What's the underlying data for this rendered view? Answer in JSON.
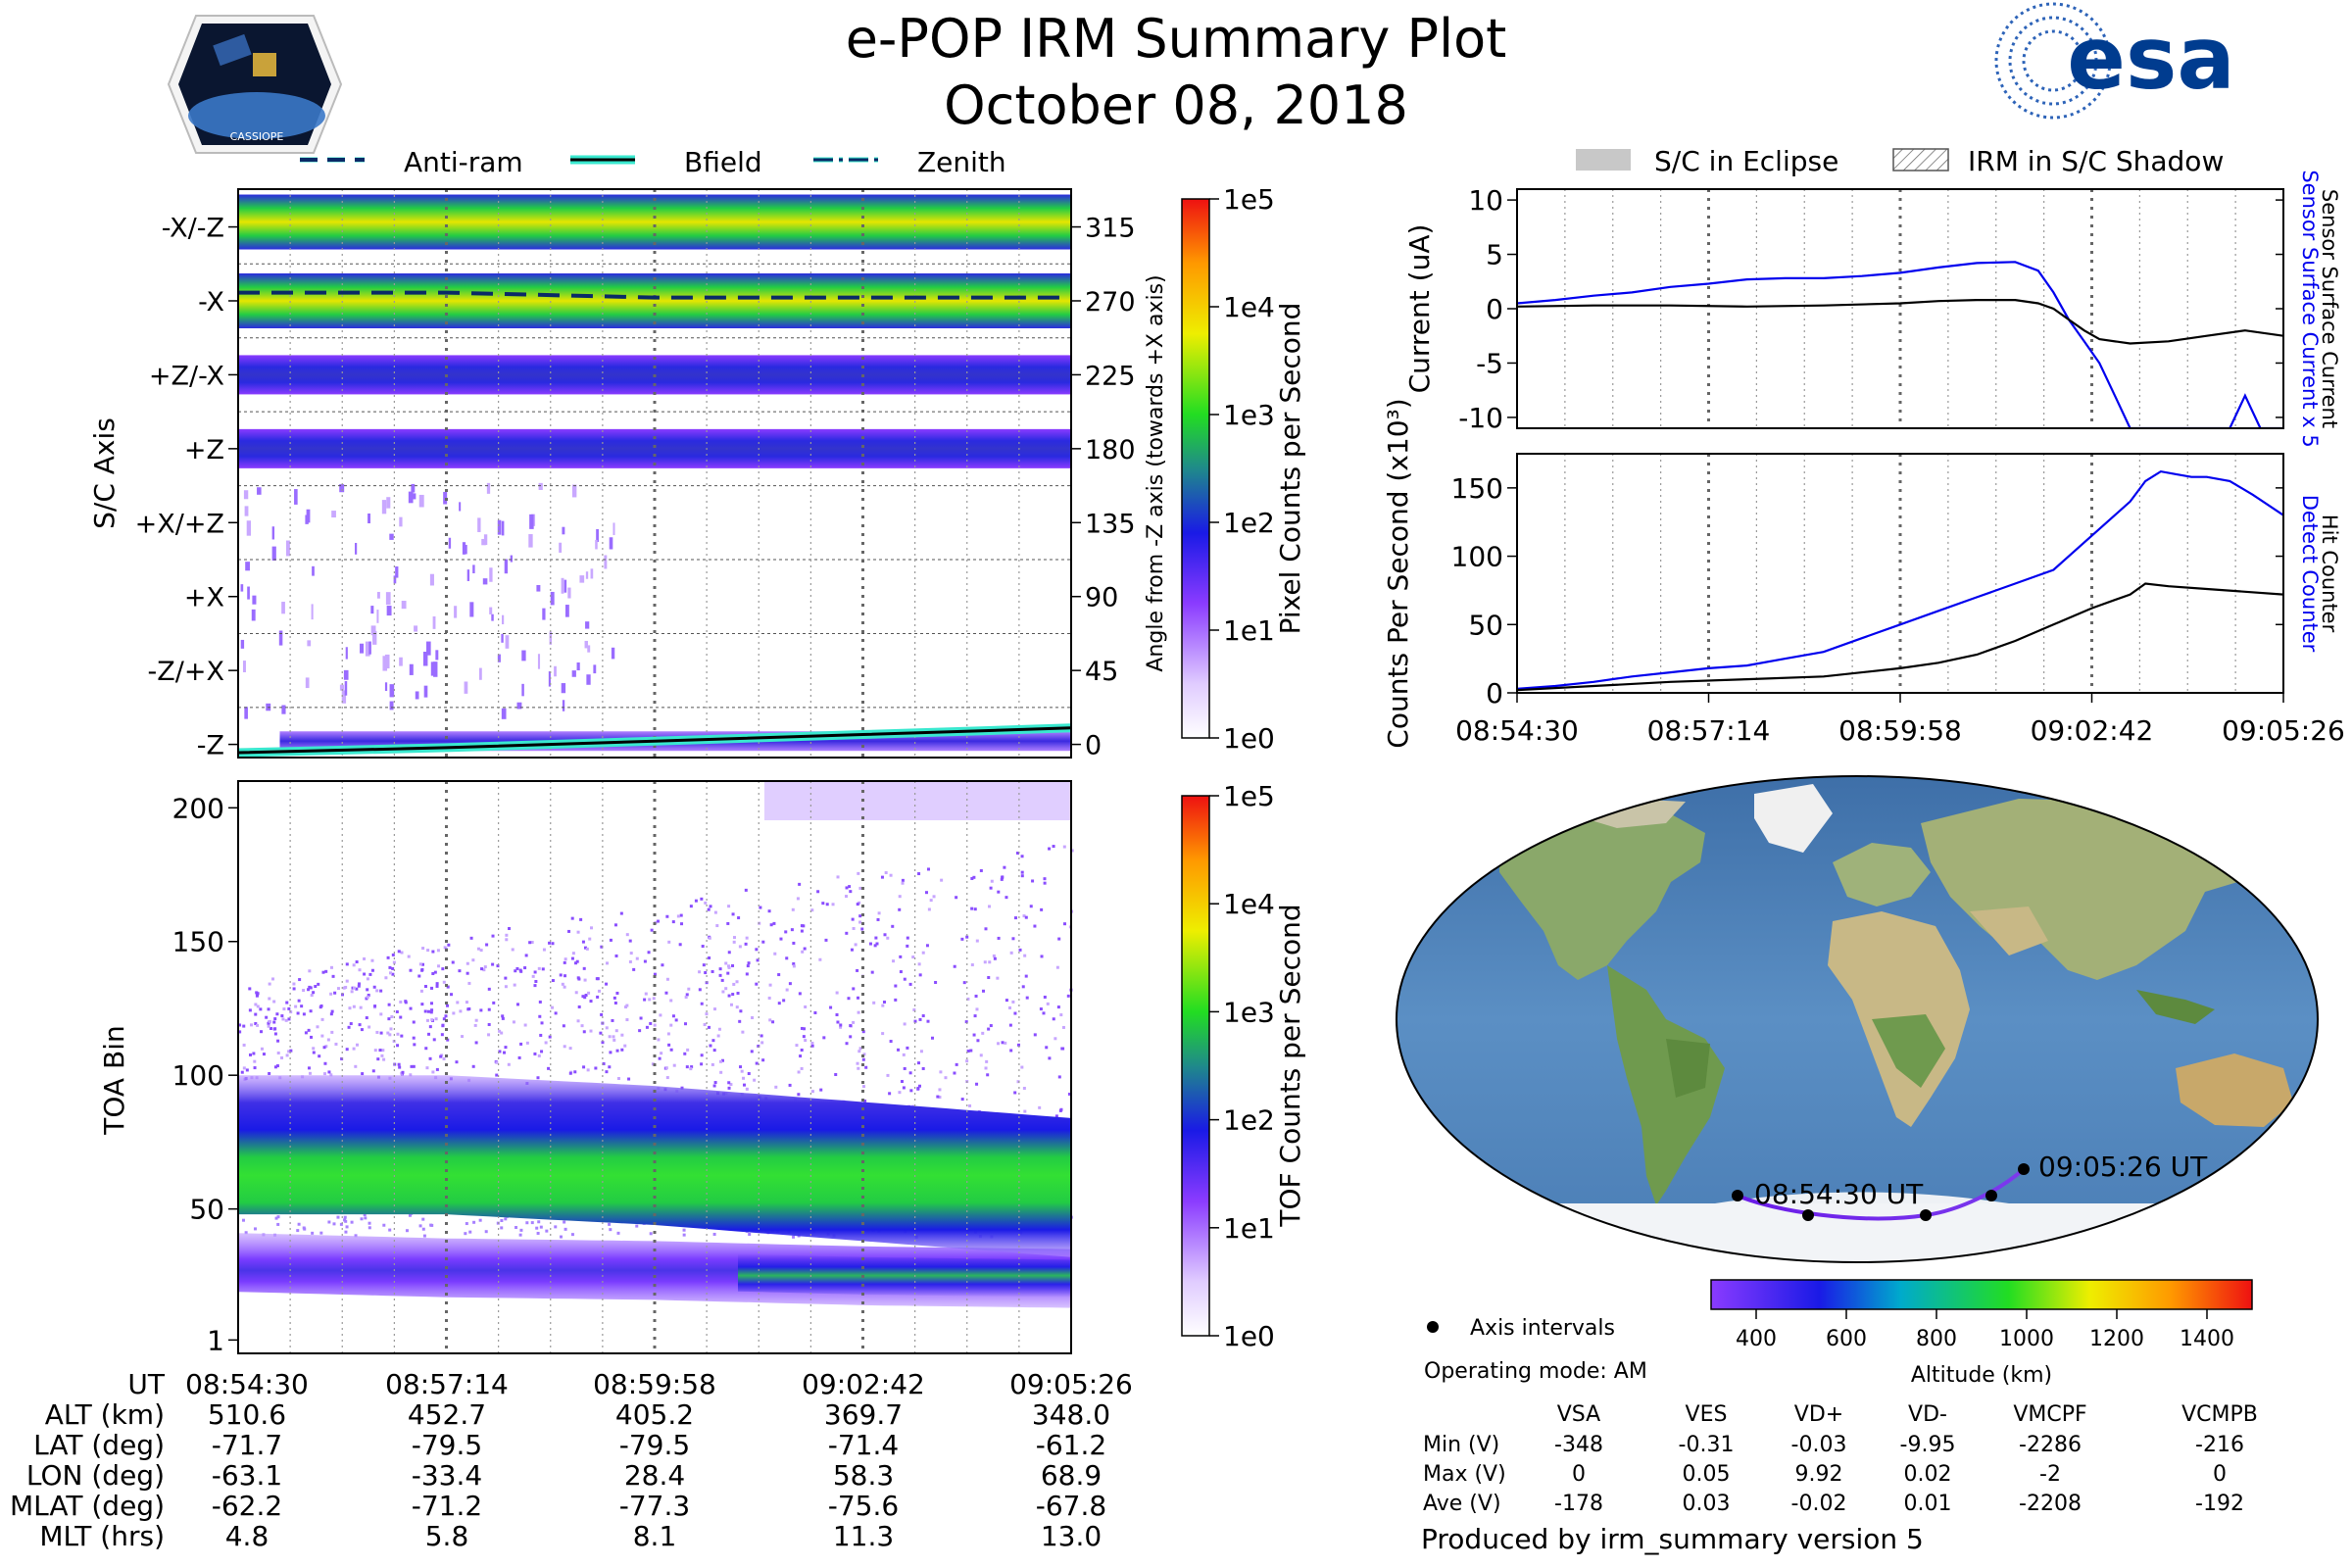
{
  "header": {
    "title": "e-POP IRM Summary Plot",
    "date": "October 08, 2018",
    "mission_badge_text": "CASSIOPE",
    "agency_logo_text": "esa"
  },
  "colors": {
    "curve_blue": "#0000ee",
    "curve_black": "#000000",
    "bfield_cyan": "#39e8cf",
    "eclipse_gray": "#c8c8c8",
    "traj_start": "#6a1ce8",
    "traj_end": "#7c3aed"
  },
  "legends": {
    "attitude": [
      "Anti-ram",
      "Bfield",
      "Zenith"
    ],
    "eclipse": [
      "S/C in Eclipse",
      "IRM in S/C Shadow"
    ]
  },
  "chart_data": [
    {
      "id": "pixel_angle",
      "type": "heatmap",
      "ylabel": "S/C Axis",
      "ylabel_right": "Angle from -Z axis (towards +X axis)",
      "axis_labels": [
        "-X/-Z",
        "-X",
        "+Z/-X",
        "+Z",
        "+X/+Z",
        "+X",
        "-Z/+X",
        "-Z"
      ],
      "angle_ticks": [
        "315",
        "270",
        "225",
        "180",
        "135",
        "90",
        "45",
        "0"
      ],
      "angles": [
        315,
        270,
        225,
        180,
        135,
        90,
        45,
        0
      ],
      "ylim": [
        -8,
        338
      ],
      "colorbar": {
        "label": "Pixel Counts per Second",
        "ticks": [
          "1e5",
          "1e4",
          "1e3",
          "1e2",
          "1e1",
          "1e0"
        ]
      },
      "bands": [
        {
          "center": 318,
          "level": "high"
        },
        {
          "center": 270,
          "level": "high"
        },
        {
          "center": 225,
          "level": "mid"
        },
        {
          "center": 180,
          "level": "mid"
        },
        {
          "center": 2,
          "level": "low"
        }
      ],
      "anti_ram_angle": [
        275,
        275,
        272,
        272,
        272
      ],
      "bfield_angle": [
        -5,
        -2,
        2,
        6,
        10
      ]
    },
    {
      "id": "tof",
      "type": "heatmap",
      "ylabel": "TOA Bin",
      "yticks": [
        "200",
        "150",
        "100",
        "50",
        "1"
      ],
      "ytick_values": [
        200,
        150,
        100,
        50,
        1
      ],
      "ylim": [
        -4,
        210
      ],
      "colorbar": {
        "label": "TOF Counts per Second",
        "ticks": [
          "1e5",
          "1e4",
          "1e3",
          "1e2",
          "1e1",
          "1e0"
        ]
      },
      "main_band_center": [
        74,
        74,
        70,
        64,
        58
      ],
      "lower_band_center": [
        30,
        28,
        27,
        25,
        24
      ]
    },
    {
      "id": "current",
      "type": "line",
      "ylabel": "Current (uA)",
      "yticks": [
        "10",
        "5",
        "0",
        "-5",
        "-10"
      ],
      "ytick_values": [
        10,
        5,
        0,
        -5,
        -10
      ],
      "ylim": [
        -11,
        11
      ],
      "series": [
        {
          "name": "Sensor Surface Current x 5",
          "color": "blue",
          "x": [
            0,
            0.05,
            0.1,
            0.15,
            0.2,
            0.25,
            0.3,
            0.35,
            0.4,
            0.45,
            0.5,
            0.55,
            0.6,
            0.65,
            0.68,
            0.7,
            0.72,
            0.74,
            0.76,
            0.78,
            0.8,
            0.85,
            0.88,
            0.9,
            0.93,
            0.95,
            0.97,
            1.0
          ],
          "values": [
            0.5,
            0.8,
            1.2,
            1.5,
            2.0,
            2.3,
            2.7,
            2.8,
            2.8,
            3.0,
            3.3,
            3.8,
            4.2,
            4.3,
            3.5,
            1.5,
            -1.0,
            -3.0,
            -5.0,
            -8.0,
            -11.0,
            -11.0,
            -11.0,
            -11.0,
            -11.0,
            -8.0,
            -11.0,
            -11.0
          ]
        },
        {
          "name": "Sensor Surface Current",
          "color": "black",
          "x": [
            0,
            0.1,
            0.2,
            0.3,
            0.4,
            0.5,
            0.55,
            0.6,
            0.65,
            0.68,
            0.7,
            0.72,
            0.74,
            0.76,
            0.8,
            0.85,
            0.9,
            0.95,
            1.0
          ],
          "values": [
            0.2,
            0.3,
            0.3,
            0.2,
            0.3,
            0.5,
            0.7,
            0.8,
            0.8,
            0.5,
            0.0,
            -1.0,
            -2.0,
            -2.8,
            -3.2,
            -3.0,
            -2.5,
            -2.0,
            -2.5
          ]
        }
      ]
    },
    {
      "id": "counts",
      "type": "line",
      "ylabel": "Counts Per Second (x10³)",
      "yticks": [
        "150",
        "100",
        "50",
        "0"
      ],
      "ytick_values": [
        150,
        100,
        50,
        0
      ],
      "ylim": [
        0,
        175
      ],
      "series": [
        {
          "name": "Detect Counter",
          "color": "blue",
          "x": [
            0,
            0.05,
            0.1,
            0.15,
            0.2,
            0.25,
            0.3,
            0.35,
            0.4,
            0.45,
            0.5,
            0.55,
            0.6,
            0.65,
            0.7,
            0.72,
            0.74,
            0.76,
            0.78,
            0.8,
            0.82,
            0.84,
            0.86,
            0.88,
            0.9,
            0.93,
            0.96,
            1.0
          ],
          "values": [
            3,
            5,
            8,
            12,
            15,
            18,
            20,
            25,
            30,
            40,
            50,
            60,
            70,
            80,
            90,
            100,
            110,
            120,
            130,
            140,
            155,
            162,
            160,
            158,
            158,
            155,
            145,
            130
          ]
        },
        {
          "name": "Hit Counter",
          "color": "black",
          "x": [
            0,
            0.1,
            0.2,
            0.3,
            0.4,
            0.5,
            0.55,
            0.6,
            0.65,
            0.7,
            0.75,
            0.8,
            0.82,
            0.85,
            0.9,
            0.95,
            1.0
          ],
          "values": [
            2,
            5,
            8,
            10,
            12,
            18,
            22,
            28,
            38,
            50,
            62,
            72,
            80,
            78,
            76,
            74,
            72
          ]
        }
      ]
    }
  ],
  "time_axis": {
    "labels": [
      "08:54:30",
      "08:57:14",
      "08:59:58",
      "09:02:42",
      "09:05:26"
    ]
  },
  "ephemeris": {
    "ut_label": "UT",
    "rows": [
      {
        "label": "ALT (km)",
        "values": [
          "510.6",
          "452.7",
          "405.2",
          "369.7",
          "348.0"
        ]
      },
      {
        "label": "LAT (deg)",
        "values": [
          "-71.7",
          "-79.5",
          "-79.5",
          "-71.4",
          "-61.2"
        ]
      },
      {
        "label": "LON (deg)",
        "values": [
          "-63.1",
          "-33.4",
          "28.4",
          "58.3",
          "68.9"
        ]
      },
      {
        "label": "MLAT (deg)",
        "values": [
          "-62.2",
          "-71.2",
          "-77.3",
          "-75.6",
          "-67.8"
        ]
      },
      {
        "label": "MLT (hrs)",
        "values": [
          "4.8",
          "5.8",
          "8.1",
          "11.3",
          "13.0"
        ]
      }
    ]
  },
  "map": {
    "start_label": "08:54:30 UT",
    "end_label": "09:05:26 UT",
    "legend_axis_intervals": "Axis intervals",
    "operating_mode": "Operating mode: AM",
    "altitude_colorbar": {
      "label": "Altitude (km)",
      "ticks": [
        "400",
        "600",
        "800",
        "1000",
        "1200",
        "1400"
      ],
      "tick_values": [
        400,
        600,
        800,
        1000,
        1200,
        1400
      ],
      "range": [
        300,
        1500
      ]
    }
  },
  "voltages": {
    "columns": [
      "VSA",
      "VES",
      "VD+",
      "VD-",
      "VMCPF",
      "VCMPB"
    ],
    "rows": [
      {
        "label": "Min (V)",
        "values": [
          "-348",
          "-0.31",
          "-0.03",
          "-9.95",
          "-2286",
          "-216"
        ]
      },
      {
        "label": "Max (V)",
        "values": [
          "0",
          "0.05",
          "9.92",
          "0.02",
          "-2",
          "0"
        ]
      },
      {
        "label": "Ave (V)",
        "values": [
          "-178",
          "0.03",
          "-0.02",
          "0.01",
          "-2208",
          "-192"
        ]
      }
    ]
  },
  "footer": "Produced by irm_summary version 5"
}
